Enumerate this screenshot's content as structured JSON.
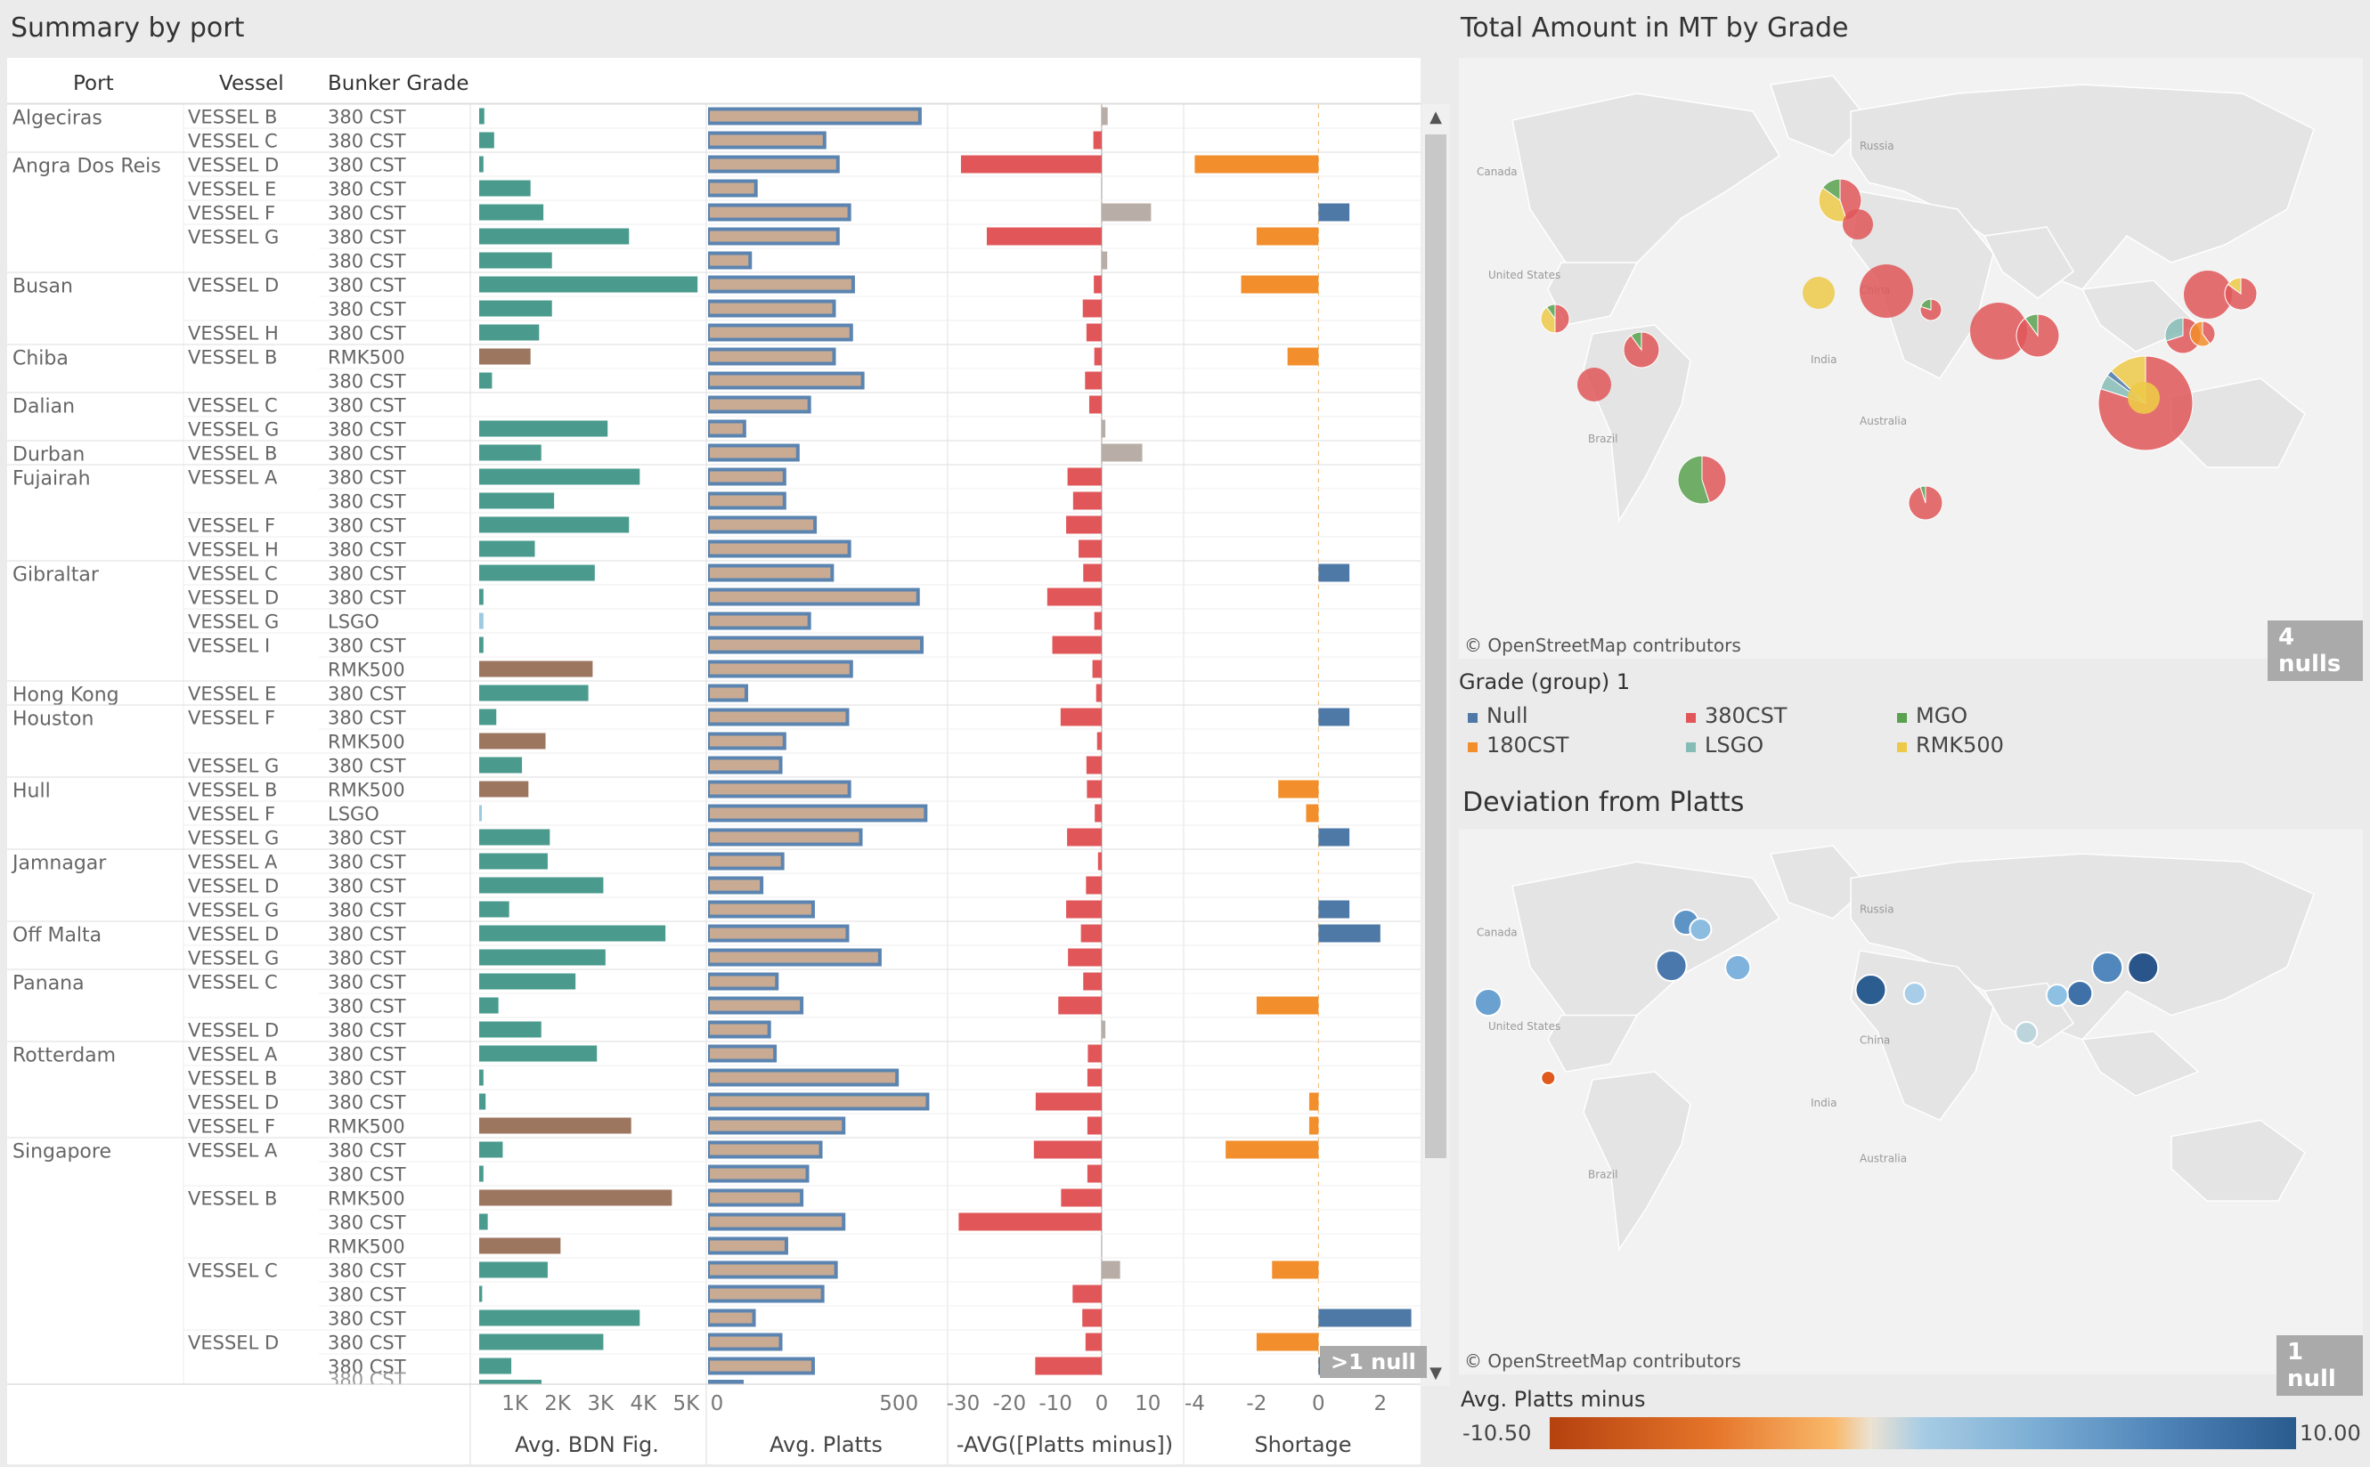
{
  "titles": {
    "summary": "Summary by port",
    "map1": "Total Amount in MT by Grade",
    "map2": "Deviation from Platts"
  },
  "table": {
    "headers": {
      "port": "Port",
      "vessel": "Vessel",
      "grade": "Bunker Grade"
    },
    "rows": [
      {
        "port": "Algeciras",
        "vessel": "VESSEL B",
        "grade": "380 CST",
        "bdn": 0.12,
        "platts": 560,
        "dev": 1.3,
        "shortage": null
      },
      {
        "port": "",
        "vessel": "VESSEL C",
        "grade": "380 CST",
        "bdn": 0.35,
        "platts": 310,
        "dev": -1.8,
        "shortage": null
      },
      {
        "port": "Angra Dos Reis",
        "vessel": "VESSEL D",
        "grade": "380 CST",
        "bdn": 0.1,
        "platts": 345,
        "dev": -30.5,
        "shortage": -4
      },
      {
        "port": "",
        "vessel": "VESSEL E",
        "grade": "380 CST",
        "bdn": 1.2,
        "platts": 130,
        "dev": null,
        "shortage": null
      },
      {
        "port": "",
        "vessel": "VESSEL F",
        "grade": "380 CST",
        "bdn": 1.5,
        "platts": 375,
        "dev": 10.7,
        "shortage": 1.0
      },
      {
        "port": "",
        "vessel": "VESSEL G",
        "grade": "380 CST",
        "bdn": 3.5,
        "platts": 345,
        "dev": -24.9,
        "shortage": -2
      },
      {
        "port": "",
        "vessel": "",
        "grade": "380 CST",
        "bdn": 1.7,
        "platts": 115,
        "dev": 1.2,
        "shortage": null
      },
      {
        "port": "Busan",
        "vessel": "VESSEL D",
        "grade": "380 CST",
        "bdn": 5.1,
        "platts": 385,
        "dev": -1.7,
        "shortage": -2.5
      },
      {
        "port": "",
        "vessel": "",
        "grade": "380 CST",
        "bdn": 1.7,
        "platts": 335,
        "dev": -4.1,
        "shortage": null
      },
      {
        "port": "",
        "vessel": "VESSEL H",
        "grade": "380 CST",
        "bdn": 1.4,
        "platts": 380,
        "dev": -3.3,
        "shortage": null
      },
      {
        "port": "Chiba",
        "vessel": "VESSEL B",
        "grade": "RMK500",
        "bdn": 1.2,
        "platts": 335,
        "dev": -1.6,
        "shortage": -1.0
      },
      {
        "port": "",
        "vessel": "",
        "grade": "380 CST",
        "bdn": 0.3,
        "platts": 410,
        "dev": -3.6,
        "shortage": null
      },
      {
        "port": "Dalian",
        "vessel": "VESSEL C",
        "grade": "380 CST",
        "bdn": 0.0,
        "platts": 270,
        "dev": -2.7,
        "shortage": null
      },
      {
        "port": "",
        "vessel": "VESSEL G",
        "grade": "380 CST",
        "bdn": 3.0,
        "platts": 100,
        "dev": 0.8,
        "shortage": null
      },
      {
        "port": "Durban",
        "vessel": "VESSEL B",
        "grade": "380 CST",
        "bdn": 1.45,
        "platts": 240,
        "dev": 8.8,
        "shortage": null
      },
      {
        "port": "Fujairah",
        "vessel": "VESSEL A",
        "grade": "380 CST",
        "bdn": 3.75,
        "platts": 205,
        "dev": -7.4,
        "shortage": null
      },
      {
        "port": "",
        "vessel": "",
        "grade": "380 CST",
        "bdn": 1.75,
        "platts": 205,
        "dev": -6.2,
        "shortage": null
      },
      {
        "port": "",
        "vessel": "VESSEL F",
        "grade": "380 CST",
        "bdn": 3.5,
        "platts": 285,
        "dev": -7.7,
        "shortage": null
      },
      {
        "port": "",
        "vessel": "VESSEL H",
        "grade": "380 CST",
        "bdn": 1.3,
        "platts": 375,
        "dev": -5.0,
        "shortage": null
      },
      {
        "port": "Gibraltar",
        "vessel": "VESSEL C",
        "grade": "380 CST",
        "bdn": 2.7,
        "platts": 330,
        "dev": -4.0,
        "shortage": 1.0
      },
      {
        "port": "",
        "vessel": "VESSEL D",
        "grade": "380 CST",
        "bdn": 0.1,
        "platts": 555,
        "dev": -11.8,
        "shortage": null
      },
      {
        "port": "",
        "vessel": "VESSEL G",
        "grade": "LSGO",
        "bdn": 0.1,
        "platts": 270,
        "dev": -1.6,
        "shortage": null
      },
      {
        "port": "",
        "vessel": "VESSEL I",
        "grade": "380 CST",
        "bdn": 0.1,
        "platts": 565,
        "dev": -10.7,
        "shortage": null
      },
      {
        "port": "",
        "vessel": "",
        "grade": "RMK500",
        "bdn": 2.65,
        "platts": 380,
        "dev": -2.0,
        "shortage": null
      },
      {
        "port": "Hong Kong",
        "vessel": "VESSEL E",
        "grade": "380 CST",
        "bdn": 2.55,
        "platts": 105,
        "dev": -1.2,
        "shortage": null
      },
      {
        "port": "Houston",
        "vessel": "VESSEL F",
        "grade": "380 CST",
        "bdn": 0.4,
        "platts": 370,
        "dev": -8.9,
        "shortage": 1.0
      },
      {
        "port": "",
        "vessel": "",
        "grade": "RMK500",
        "bdn": 1.55,
        "platts": 205,
        "dev": -1.0,
        "shortage": null
      },
      {
        "port": "",
        "vessel": "VESSEL G",
        "grade": "380 CST",
        "bdn": 1.0,
        "platts": 195,
        "dev": -3.3,
        "shortage": null
      },
      {
        "port": "Hull",
        "vessel": "VESSEL B",
        "grade": "RMK500",
        "bdn": 1.15,
        "platts": 375,
        "dev": -3.2,
        "shortage": -1.3
      },
      {
        "port": "",
        "vessel": "VESSEL F",
        "grade": "LSGO",
        "bdn": 0.05,
        "platts": 575,
        "dev": -1.5,
        "shortage": -0.4
      },
      {
        "port": "",
        "vessel": "VESSEL G",
        "grade": "380 CST",
        "bdn": 1.65,
        "platts": 405,
        "dev": -7.5,
        "shortage": 1.0
      },
      {
        "port": "Jamnagar",
        "vessel": "VESSEL A",
        "grade": "380 CST",
        "bdn": 1.6,
        "platts": 200,
        "dev": -0.8,
        "shortage": null
      },
      {
        "port": "",
        "vessel": "VESSEL D",
        "grade": "380 CST",
        "bdn": 2.9,
        "platts": 145,
        "dev": -3.4,
        "shortage": null
      },
      {
        "port": "",
        "vessel": "VESSEL G",
        "grade": "380 CST",
        "bdn": 0.7,
        "platts": 280,
        "dev": -7.7,
        "shortage": 1.0
      },
      {
        "port": "Off Malta",
        "vessel": "VESSEL D",
        "grade": "380 CST",
        "bdn": 4.35,
        "platts": 370,
        "dev": -4.5,
        "shortage": 2.0
      },
      {
        "port": "",
        "vessel": "VESSEL G",
        "grade": "380 CST",
        "bdn": 2.95,
        "platts": 455,
        "dev": -7.3,
        "shortage": null
      },
      {
        "port": "Panana",
        "vessel": "VESSEL C",
        "grade": "380 CST",
        "bdn": 2.25,
        "platts": 185,
        "dev": -4.0,
        "shortage": null
      },
      {
        "port": "",
        "vessel": "",
        "grade": "380 CST",
        "bdn": 0.45,
        "platts": 250,
        "dev": -9.4,
        "shortage": -2
      },
      {
        "port": "",
        "vessel": "VESSEL D",
        "grade": "380 CST",
        "bdn": 1.45,
        "platts": 165,
        "dev": 0.8,
        "shortage": null
      },
      {
        "port": "Rotterdam",
        "vessel": "VESSEL A",
        "grade": "380 CST",
        "bdn": 2.75,
        "platts": 180,
        "dev": -3.0,
        "shortage": null
      },
      {
        "port": "",
        "vessel": "VESSEL B",
        "grade": "380 CST",
        "bdn": 0.1,
        "platts": 500,
        "dev": -3.1,
        "shortage": null
      },
      {
        "port": "",
        "vessel": "VESSEL D",
        "grade": "380 CST",
        "bdn": 0.15,
        "platts": 580,
        "dev": -14.3,
        "shortage": -0.3
      },
      {
        "port": "",
        "vessel": "VESSEL F",
        "grade": "RMK500",
        "bdn": 3.55,
        "platts": 360,
        "dev": -3.1,
        "shortage": -0.3
      },
      {
        "port": "Singapore",
        "vessel": "VESSEL A",
        "grade": "380 CST",
        "bdn": 0.55,
        "platts": 300,
        "dev": -14.7,
        "shortage": -3
      },
      {
        "port": "",
        "vessel": "",
        "grade": "380 CST",
        "bdn": 0.1,
        "platts": 265,
        "dev": -3.1,
        "shortage": null
      },
      {
        "port": "",
        "vessel": "VESSEL B",
        "grade": "RMK500",
        "bdn": 4.5,
        "platts": 250,
        "dev": -8.8,
        "shortage": null
      },
      {
        "port": "",
        "vessel": "",
        "grade": "380 CST",
        "bdn": 0.2,
        "platts": 360,
        "dev": -31.0,
        "shortage": null
      },
      {
        "port": "",
        "vessel": "",
        "grade": "RMK500",
        "bdn": 1.9,
        "platts": 210,
        "dev": null,
        "shortage": null
      },
      {
        "port": "",
        "vessel": "VESSEL C",
        "grade": "380 CST",
        "bdn": 1.6,
        "platts": 340,
        "dev": 4.0,
        "shortage": -1.5
      },
      {
        "port": "",
        "vessel": "",
        "grade": "380 CST",
        "bdn": 0.07,
        "platts": 305,
        "dev": -6.3,
        "shortage": null
      },
      {
        "port": "",
        "vessel": "",
        "grade": "380 CST",
        "bdn": 3.75,
        "platts": 125,
        "dev": -4.2,
        "shortage": 3.0
      },
      {
        "port": "",
        "vessel": "VESSEL D",
        "grade": "380 CST",
        "bdn": 2.9,
        "platts": 195,
        "dev": -3.5,
        "shortage": -2
      },
      {
        "port": "",
        "vessel": "",
        "grade": "380 CST",
        "bdn": 0.75,
        "platts": 280,
        "dev": -14.4,
        "shortage": 0.3
      }
    ],
    "cutoff_label": "380 CST"
  },
  "axes": {
    "bdn": {
      "title": "Avg. BDN Fig.",
      "ticks": [
        "1K",
        "2K",
        "3K",
        "4K",
        "5K"
      ],
      "max": 5.2
    },
    "platts": {
      "title": "Avg. Platts",
      "ticks": [
        "0",
        "500"
      ],
      "max": 600
    },
    "dev": {
      "title": "-AVG([Platts minus])",
      "ticks": [
        "-30",
        "-20",
        "-10",
        "0",
        "10"
      ],
      "min": -33,
      "max": 17
    },
    "shortage": {
      "title": "Shortage",
      "ticks": [
        "-4",
        "-2",
        "0",
        "2"
      ],
      "min": -4.3,
      "max": 3.3
    }
  },
  "null_badges": {
    "table": ">1 null",
    "map1": "4 nulls",
    "map2": "1 null"
  },
  "attribution": "© OpenStreetMap contributors",
  "legend": {
    "title": "Grade (group) 1",
    "items": [
      {
        "label": "Null",
        "color": "#4e79a7"
      },
      {
        "label": "380CST",
        "color": "#e15759"
      },
      {
        "label": "MGO",
        "color": "#59a14f"
      },
      {
        "label": "180CST",
        "color": "#f28e2b"
      },
      {
        "label": "LSGO",
        "color": "#86bcb6"
      },
      {
        "label": "RMK500",
        "color": "#edc948"
      }
    ]
  },
  "color_legend": {
    "title": "Avg. Platts minus",
    "min": "-10.50",
    "max": "10.00"
  },
  "map_labels": [
    "Canada",
    "United States",
    "Brazil",
    "Russia",
    "China",
    "India",
    "Australia"
  ],
  "colors": {
    "teal": "#4a9b8e",
    "brown": "#9d7660",
    "lightblue": "#9ccae0",
    "bar_blue": "#5b84b1",
    "bar_tan": "#c9ab94",
    "red": "#e15759",
    "gray": "#b8aea7",
    "orange": "#f28e2b",
    "blue": "#4e79a7"
  }
}
